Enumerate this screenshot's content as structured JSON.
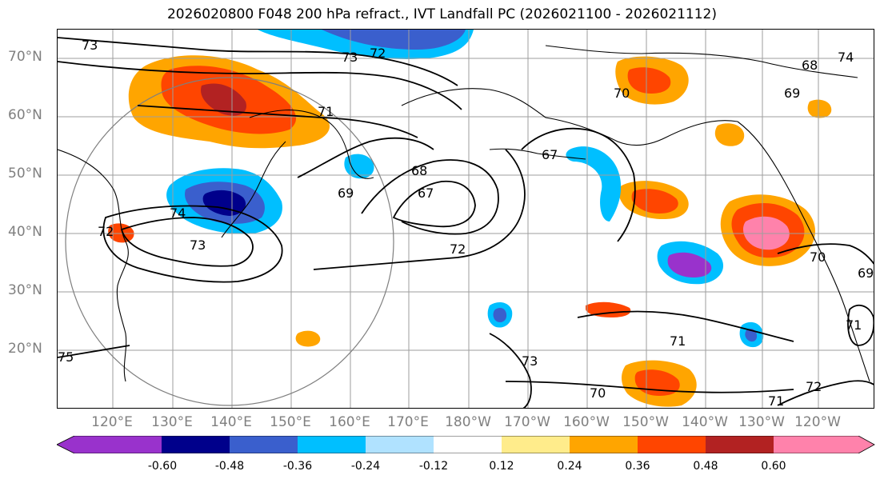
{
  "title": "2026020800 F048 200 hPa refract., IVT Landfall PC (2026021100 - 2026021112)",
  "lat_labels": [
    "70°N",
    "60°N",
    "50°N",
    "40°N",
    "30°N",
    "20°N"
  ],
  "lon_labels": [
    "120°E",
    "130°E",
    "140°E",
    "150°E",
    "160°E",
    "170°E",
    "180°W",
    "170°W",
    "160°W",
    "150°W",
    "140°W",
    "130°W",
    "120°W"
  ],
  "contour_labels": [
    "73",
    "73",
    "72",
    "71",
    "69",
    "68",
    "67",
    "72",
    "70",
    "69",
    "68",
    "67",
    "72",
    "73",
    "74",
    "75",
    "73",
    "71",
    "70",
    "72",
    "71",
    "70",
    "71",
    "74",
    "69"
  ],
  "colorbar": {
    "ticks": [
      "-0.60",
      "-0.48",
      "-0.36",
      "-0.24",
      "-0.12",
      "0.12",
      "0.24",
      "0.36",
      "0.48",
      "0.60"
    ],
    "colors": [
      "#9932cc",
      "#00008b",
      "#3a5fcd",
      "#00bfff",
      "#b0e2ff",
      "#ffffff",
      "#ffec8b",
      "#ffa500",
      "#ff4500",
      "#b22222",
      "#ff82ab"
    ]
  },
  "colors": {
    "grid": "#9e9e9e",
    "contour": "#000000",
    "axis_label": "#7f7f7f"
  }
}
